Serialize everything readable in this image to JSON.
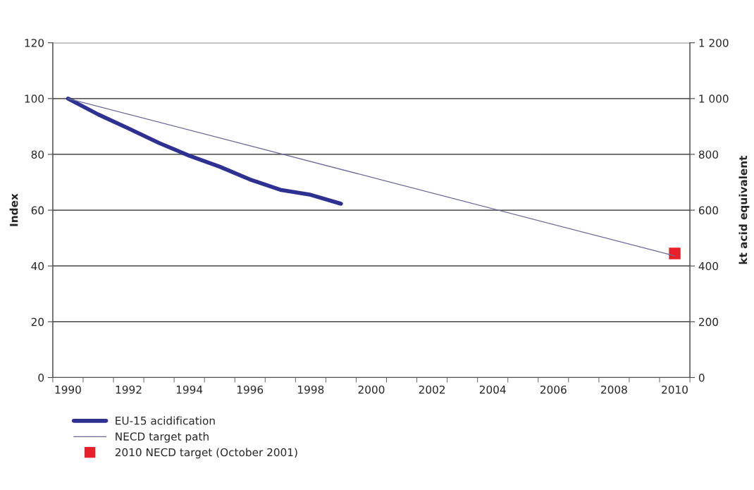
{
  "chart_data": {
    "type": "line",
    "x": [
      1990,
      1991,
      1992,
      1993,
      1994,
      1995,
      1996,
      1997,
      1998,
      1999,
      2000,
      2001,
      2002,
      2003,
      2004,
      2005,
      2006,
      2007,
      2008,
      2009,
      2010
    ],
    "xlim": [
      1989.5,
      2010.5
    ],
    "xticks": [
      1990,
      1992,
      1994,
      1996,
      1998,
      2000,
      2002,
      2004,
      2006,
      2008,
      2010
    ],
    "ylabel": "Index",
    "y2label": "kt acid equivalent",
    "ylim": [
      0,
      120
    ],
    "yticks": [
      0,
      20,
      40,
      60,
      80,
      100,
      120
    ],
    "y2lim": [
      0,
      1200
    ],
    "y2ticks": [
      0,
      200,
      400,
      600,
      800,
      {
        "value": 1000,
        "label": "1 000"
      },
      {
        "value": 1200,
        "label": "1 200"
      }
    ],
    "grid": "y",
    "legend": "bottom",
    "series": [
      {
        "name": "EU-15 acidification",
        "color": "#2e3192",
        "values": [
          100,
          94.3,
          89.3,
          84.1,
          79.5,
          75.6,
          71.0,
          67.3,
          65.5,
          62.3,
          null,
          null,
          null,
          null,
          null,
          null,
          null,
          null,
          null,
          null,
          null
        ]
      },
      {
        "name": "NECD target path",
        "color": "#6a6a9a",
        "values": [
          100,
          null,
          null,
          null,
          null,
          null,
          null,
          null,
          null,
          null,
          null,
          null,
          null,
          null,
          null,
          null,
          null,
          null,
          null,
          null,
          43.6
        ]
      },
      {
        "name": "2010 NECD target (October 2001)",
        "type": "scatter",
        "marker": "square",
        "axis": "y2",
        "color": "#e8202a",
        "values": [
          null,
          null,
          null,
          null,
          null,
          null,
          null,
          null,
          null,
          null,
          null,
          null,
          null,
          null,
          null,
          null,
          null,
          null,
          null,
          null,
          445
        ]
      }
    ]
  }
}
